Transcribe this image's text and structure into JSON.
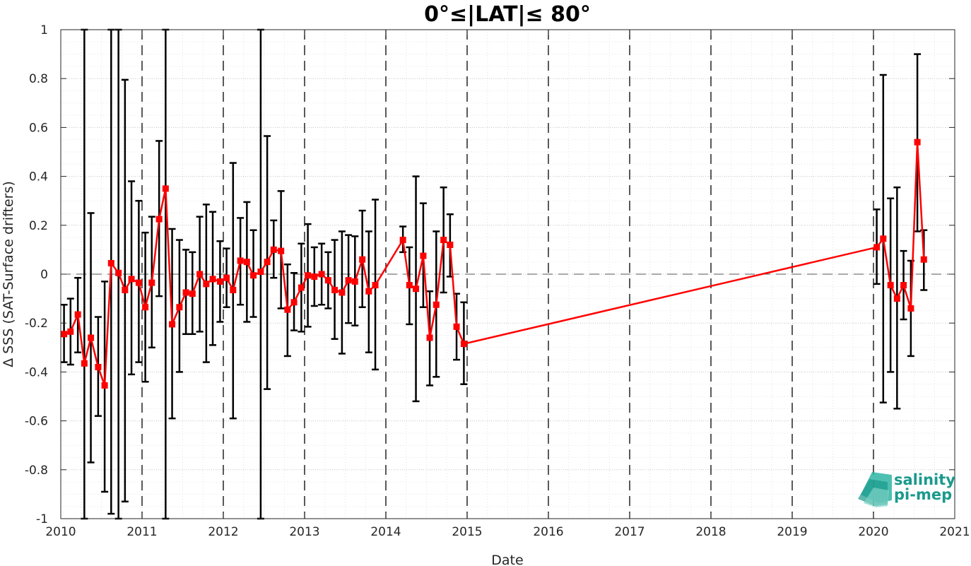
{
  "chart_data": {
    "type": "scatter",
    "title": "0°≤|LAT|≤ 80°",
    "xlabel": "Date",
    "ylabel": "Δ SSS (SAT-Surface drifters)",
    "xlim": [
      2010,
      2021
    ],
    "ylim": [
      -1,
      1
    ],
    "xticks": [
      2010,
      2011,
      2012,
      2013,
      2014,
      2015,
      2016,
      2017,
      2018,
      2019,
      2020,
      2021
    ],
    "xtick_labels": [
      "2010",
      "2011",
      "2012",
      "2013",
      "2014",
      "2015",
      "2016",
      "2017",
      "2018",
      "2019",
      "2020",
      "2021"
    ],
    "yticks": [
      1,
      0.8,
      0.6,
      0.4,
      0.2,
      0,
      -0.2,
      -0.4,
      -0.6,
      -0.8,
      -1
    ],
    "ytick_labels": [
      "1",
      "0.8",
      "0.6",
      "0.4",
      "0.2",
      "0",
      "-0.2",
      "-0.4",
      "-0.6",
      "-0.8",
      "-1"
    ],
    "grid": true,
    "reference_line": 0,
    "year_markers": [
      2011,
      2012,
      2013,
      2014,
      2015,
      2016,
      2017,
      2018,
      2019,
      2020
    ],
    "series": [
      {
        "color": "#ff0000",
        "marker": "square",
        "x": [
          2010.04,
          2010.12,
          2010.21,
          2010.29,
          2010.37,
          2010.46,
          2010.54,
          2010.62,
          2010.71,
          2010.79,
          2010.87,
          2010.96,
          2011.04,
          2011.12,
          2011.21,
          2011.29,
          2011.37,
          2011.46,
          2011.54,
          2011.62,
          2011.71,
          2011.79,
          2011.87,
          2011.96,
          2012.04,
          2012.12,
          2012.21,
          2012.29,
          2012.37,
          2012.46,
          2012.54,
          2012.62,
          2012.71,
          2012.79,
          2012.87,
          2012.96,
          2013.04,
          2013.12,
          2013.21,
          2013.29,
          2013.37,
          2013.46,
          2013.54,
          2013.62,
          2013.71,
          2013.79,
          2013.87,
          2014.21,
          2014.29,
          2014.37,
          2014.46,
          2014.54,
          2014.62,
          2014.71,
          2014.79,
          2014.87,
          2014.96,
          2020.04,
          2020.12,
          2020.21,
          2020.29,
          2020.37,
          2020.46,
          2020.54,
          2020.62
        ],
        "y": [
          -0.245,
          -0.235,
          -0.165,
          -0.365,
          -0.26,
          -0.38,
          -0.455,
          0.045,
          0.005,
          -0.065,
          -0.02,
          -0.035,
          -0.135,
          -0.035,
          0.225,
          0.35,
          -0.205,
          -0.135,
          -0.075,
          -0.08,
          0.0,
          -0.04,
          -0.02,
          -0.03,
          -0.015,
          -0.065,
          0.055,
          0.05,
          -0.005,
          0.01,
          0.05,
          0.1,
          0.095,
          -0.145,
          -0.115,
          -0.055,
          -0.005,
          -0.01,
          0.0,
          -0.025,
          -0.065,
          -0.075,
          -0.025,
          -0.03,
          0.06,
          -0.07,
          -0.045,
          0.14,
          -0.045,
          -0.06,
          0.075,
          -0.26,
          -0.125,
          0.14,
          0.12,
          -0.215,
          -0.285,
          0.11,
          0.145,
          -0.045,
          -0.1,
          -0.045,
          -0.14,
          0.54,
          0.06
        ],
        "err_low": [
          -0.36,
          -0.37,
          -0.32,
          -1.0,
          -0.77,
          -0.58,
          -0.89,
          -0.98,
          -1.0,
          -0.93,
          -0.41,
          -0.36,
          -0.44,
          -0.3,
          -0.09,
          -1.0,
          -0.59,
          -0.4,
          -0.245,
          -0.245,
          -0.235,
          -0.36,
          -0.29,
          -0.195,
          -0.135,
          -0.59,
          -0.125,
          -0.195,
          -0.175,
          -1.0,
          -0.47,
          -0.015,
          -0.14,
          -0.335,
          -0.23,
          -0.235,
          -0.215,
          -0.13,
          -0.125,
          -0.14,
          -0.265,
          -0.325,
          -0.2,
          -0.21,
          -0.135,
          -0.32,
          -0.39,
          0.09,
          -0.205,
          -0.52,
          -0.135,
          -0.455,
          -0.42,
          -0.075,
          -0.01,
          -0.35,
          -0.45,
          -0.04,
          -0.525,
          -0.4,
          -0.55,
          -0.185,
          -0.335,
          0.175,
          -0.065
        ],
        "err_high": [
          -0.125,
          -0.1,
          -0.015,
          1.0,
          0.25,
          -0.175,
          -0.03,
          1.0,
          1.0,
          0.795,
          0.38,
          0.3,
          0.17,
          0.235,
          0.545,
          1.0,
          0.185,
          0.14,
          0.1,
          0.09,
          0.235,
          0.285,
          0.255,
          0.135,
          0.105,
          0.455,
          0.23,
          0.295,
          0.18,
          1.0,
          0.565,
          0.22,
          0.34,
          0.04,
          0.005,
          0.125,
          0.205,
          0.11,
          0.125,
          0.09,
          0.14,
          0.175,
          0.16,
          0.155,
          0.26,
          0.175,
          0.305,
          0.195,
          0.11,
          0.4,
          0.29,
          -0.07,
          0.175,
          0.355,
          0.245,
          -0.08,
          -0.115,
          0.265,
          0.815,
          0.31,
          0.355,
          0.095,
          0.055,
          0.9,
          0.18
        ]
      }
    ]
  },
  "logo": {
    "line1": "salinity",
    "line2": "pi-mep",
    "color": "#1a9a8c"
  }
}
